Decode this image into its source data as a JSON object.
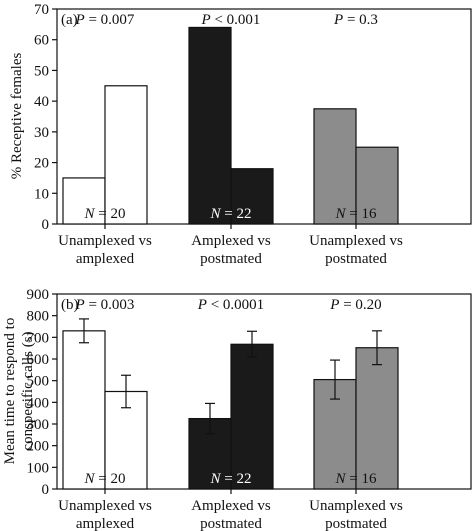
{
  "chart_data": [
    {
      "type": "bar",
      "panel_label": "(a)",
      "title": "",
      "xlabel": "",
      "ylabel": "% Receptive females",
      "ylim": [
        0,
        70
      ],
      "yticks": [
        0,
        10,
        20,
        30,
        40,
        50,
        60,
        70
      ],
      "grid": false,
      "groups": [
        {
          "label_lines": [
            "Unamplexed vs",
            "amplexed"
          ],
          "values": [
            15,
            45
          ],
          "fill": "#ffffff",
          "p_text": {
            "p": "P",
            "rest": " = 0.007"
          },
          "n_text": {
            "n": "N",
            "rest": " = 20"
          }
        },
        {
          "label_lines": [
            "Amplexed vs",
            "postmated"
          ],
          "values": [
            64,
            18
          ],
          "fill": "#1a1a1a",
          "p_text": {
            "p": "P",
            "rest": " < 0.001"
          },
          "n_text": {
            "n": "N",
            "rest": " = 22"
          }
        },
        {
          "label_lines": [
            "Unamplexed vs",
            "postmated"
          ],
          "values": [
            37.5,
            25
          ],
          "fill": "#8c8c8c",
          "p_text": {
            "p": "P",
            "rest": " = 0.3"
          },
          "n_text": {
            "n": "N",
            "rest": " = 16"
          }
        }
      ]
    },
    {
      "type": "bar",
      "panel_label": "(b)",
      "title": "",
      "xlabel": "",
      "ylabel_lines": [
        "Mean time to respond to",
        "conspecific calls (s)"
      ],
      "ylim": [
        0,
        900
      ],
      "yticks": [
        0,
        100,
        200,
        300,
        400,
        500,
        600,
        700,
        800,
        900
      ],
      "grid": false,
      "groups": [
        {
          "label_lines": [
            "Unamplexed vs",
            "amplexed"
          ],
          "values": [
            730,
            450
          ],
          "errors": [
            55,
            75
          ],
          "fill": "#ffffff",
          "p_text": {
            "p": "P",
            "rest": " = 0.003"
          },
          "n_text": {
            "n": "N",
            "rest": " = 20"
          }
        },
        {
          "label_lines": [
            "Amplexed vs",
            "postmated"
          ],
          "values": [
            325,
            668
          ],
          "errors": [
            70,
            60
          ],
          "fill": "#1a1a1a",
          "p_text": {
            "p": "P",
            "rest": " < 0.0001"
          },
          "n_text": {
            "n": "N",
            "rest": " = 22"
          }
        },
        {
          "label_lines": [
            "Unamplexed vs",
            "postmated"
          ],
          "values": [
            505,
            652
          ],
          "errors": [
            90,
            78
          ],
          "fill": "#8c8c8c",
          "p_text": {
            "p": "P",
            "rest": " = 0.20"
          },
          "n_text": {
            "n": "N",
            "rest": " = 16"
          }
        }
      ]
    }
  ]
}
